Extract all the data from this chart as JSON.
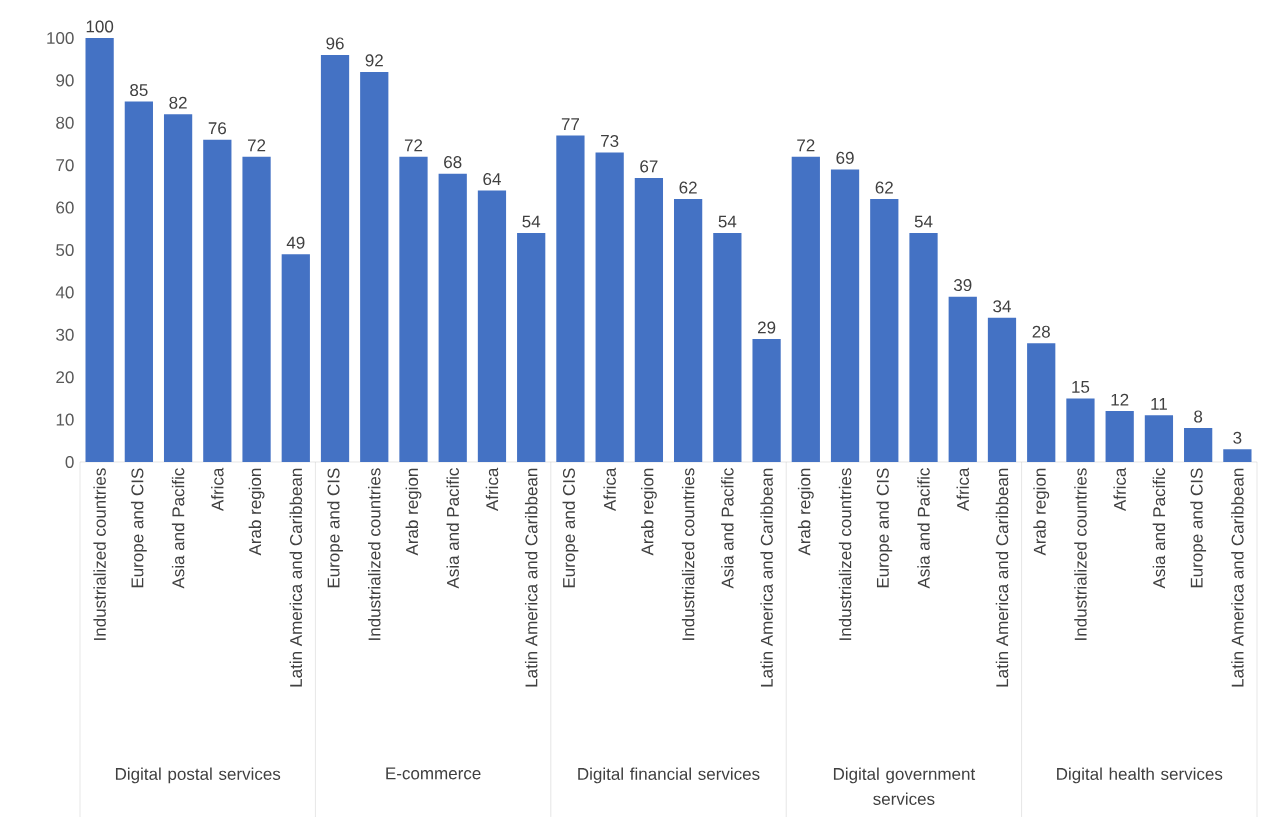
{
  "chart_data": {
    "type": "bar",
    "categories": [
      "Industrialized countries",
      "Europe and CIS",
      "Asia and Pacific",
      "Africa",
      "Arab region",
      "Latin America and Caribbean",
      "Europe and CIS",
      "Industrialized countries",
      "Arab region",
      "Asia and Pacific",
      "Africa",
      "Latin America and Caribbean",
      "Europe and CIS",
      "Africa",
      "Arab region",
      "Industrialized countries",
      "Asia and Pacific",
      "Latin America and Caribbean",
      "Arab region",
      "Industrialized countries",
      "Europe and CIS",
      "Asia and Pacific",
      "Africa",
      "Latin America and Caribbean",
      "Arab region",
      "Industrialized countries",
      "Africa",
      "Asia and Pacific",
      "Europe and CIS",
      "Latin America and Caribbean"
    ],
    "values": [
      100,
      85,
      82,
      76,
      72,
      49,
      96,
      92,
      72,
      68,
      64,
      54,
      77,
      73,
      67,
      62,
      54,
      29,
      72,
      69,
      62,
      54,
      39,
      34,
      28,
      15,
      12,
      11,
      8,
      3
    ],
    "color": "#4472c4",
    "ylim": [
      0,
      100
    ],
    "yticks": [
      0,
      10,
      20,
      30,
      40,
      50,
      60,
      70,
      80,
      90,
      100
    ],
    "data_labels": true,
    "grid": false,
    "annotations": [
      "Digital postal services",
      "E-commerce",
      "Digital financial services",
      "Digital government services",
      "Digital health services"
    ]
  }
}
